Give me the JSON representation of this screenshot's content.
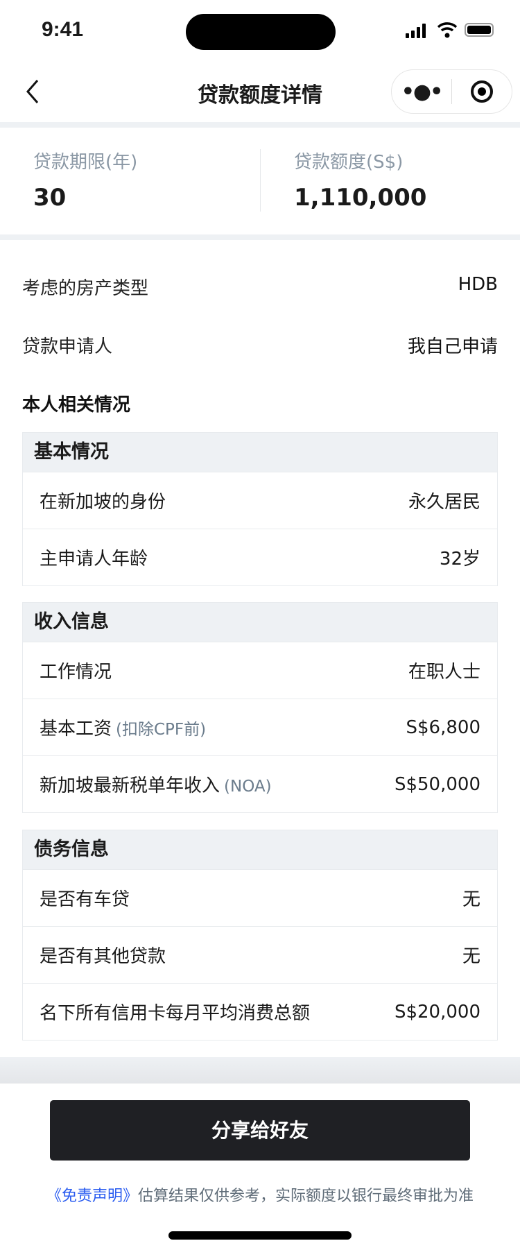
{
  "status_bar": {
    "time": "9:41"
  },
  "nav": {
    "title": "贷款额度详情",
    "back_icon": "chevron-left-icon",
    "more_icon": "more-dots-icon",
    "close_icon": "target-circle-icon"
  },
  "summary": {
    "term_label": "贷款期限(年)",
    "term_value": "30",
    "amount_label": "贷款额度(S$)",
    "amount_value": "1,110,000"
  },
  "info": [
    {
      "label": "考虑的房产类型",
      "value": "HDB"
    },
    {
      "label": "贷款申请人",
      "value": "我自己申请"
    }
  ],
  "personal_heading": "本人相关情况",
  "sections": [
    {
      "title": "基本情况",
      "rows": [
        {
          "label": "在新加坡的身份",
          "note": "",
          "value": "永久居民"
        },
        {
          "label": "主申请人年龄",
          "note": "",
          "value": "32岁"
        }
      ]
    },
    {
      "title": "收入信息",
      "rows": [
        {
          "label": "工作情况",
          "note": "",
          "value": "在职人士"
        },
        {
          "label": "基本工资",
          "note": "(扣除CPF前)",
          "value": "S$6,800"
        },
        {
          "label": "新加坡最新税单年收入",
          "note": "(NOA)",
          "value": "S$50,000"
        }
      ]
    },
    {
      "title": "债务信息",
      "rows": [
        {
          "label": "是否有车贷",
          "note": "",
          "value": "无"
        },
        {
          "label": "是否有其他贷款",
          "note": "",
          "value": "无"
        },
        {
          "label": "名下所有信用卡每月平均消费总额",
          "note": "",
          "value": "S$20,000"
        }
      ]
    }
  ],
  "share_button": "分享给好友",
  "disclaimer": {
    "link": "《免责声明》",
    "text": "估算结果仅供参考，实际额度以银行最终审批为准"
  },
  "colors": {
    "button": "#1f2024",
    "link": "#2a5cf0",
    "band": "#eef1f4"
  }
}
